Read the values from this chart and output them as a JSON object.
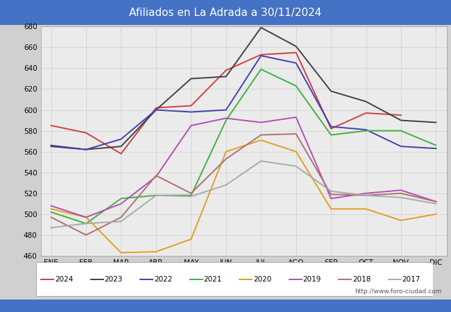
{
  "title": "Afiliados en La Adrada a 30/11/2024",
  "title_color": "#ffffff",
  "title_bg_color": "#4472c4",
  "plot_bg_color": "#ebebeb",
  "fig_bg_color": "#d0d0d0",
  "months": [
    "ENE",
    "FEB",
    "MAR",
    "ABR",
    "MAY",
    "JUN",
    "JUL",
    "AGO",
    "SEP",
    "OCT",
    "NOV",
    "DIC"
  ],
  "watermark": "http://www.foro-ciudad.com",
  "ylim": [
    460,
    680
  ],
  "yticks": [
    460,
    480,
    500,
    520,
    540,
    560,
    580,
    600,
    620,
    640,
    660,
    680
  ],
  "series": [
    {
      "label": "2024",
      "color": "#d04040",
      "linewidth": 1.4,
      "data": [
        585,
        578,
        558,
        602,
        604,
        638,
        653,
        655,
        582,
        597,
        595,
        null
      ]
    },
    {
      "label": "2023",
      "color": "#404040",
      "linewidth": 1.4,
      "data": [
        565,
        562,
        565,
        600,
        630,
        632,
        679,
        661,
        618,
        608,
        590,
        588
      ]
    },
    {
      "label": "2022",
      "color": "#4040b0",
      "linewidth": 1.4,
      "data": [
        566,
        562,
        572,
        600,
        598,
        600,
        652,
        645,
        584,
        581,
        565,
        563
      ]
    },
    {
      "label": "2021",
      "color": "#40b040",
      "linewidth": 1.4,
      "data": [
        502,
        491,
        515,
        518,
        518,
        590,
        639,
        623,
        576,
        580,
        580,
        566
      ]
    },
    {
      "label": "2020",
      "color": "#e0a020",
      "linewidth": 1.4,
      "data": [
        505,
        497,
        463,
        464,
        476,
        560,
        571,
        560,
        505,
        505,
        494,
        500
      ]
    },
    {
      "label": "2019",
      "color": "#b050b0",
      "linewidth": 1.4,
      "data": [
        508,
        497,
        510,
        536,
        585,
        592,
        588,
        593,
        515,
        520,
        523,
        512
      ]
    },
    {
      "label": "2018",
      "color": "#b07070",
      "linewidth": 1.4,
      "data": [
        497,
        480,
        497,
        537,
        520,
        553,
        576,
        577,
        519,
        518,
        520,
        512
      ]
    },
    {
      "label": "2017",
      "color": "#aaaaaa",
      "linewidth": 1.4,
      "data": [
        487,
        491,
        493,
        518,
        517,
        528,
        551,
        546,
        522,
        518,
        516,
        510
      ]
    }
  ]
}
